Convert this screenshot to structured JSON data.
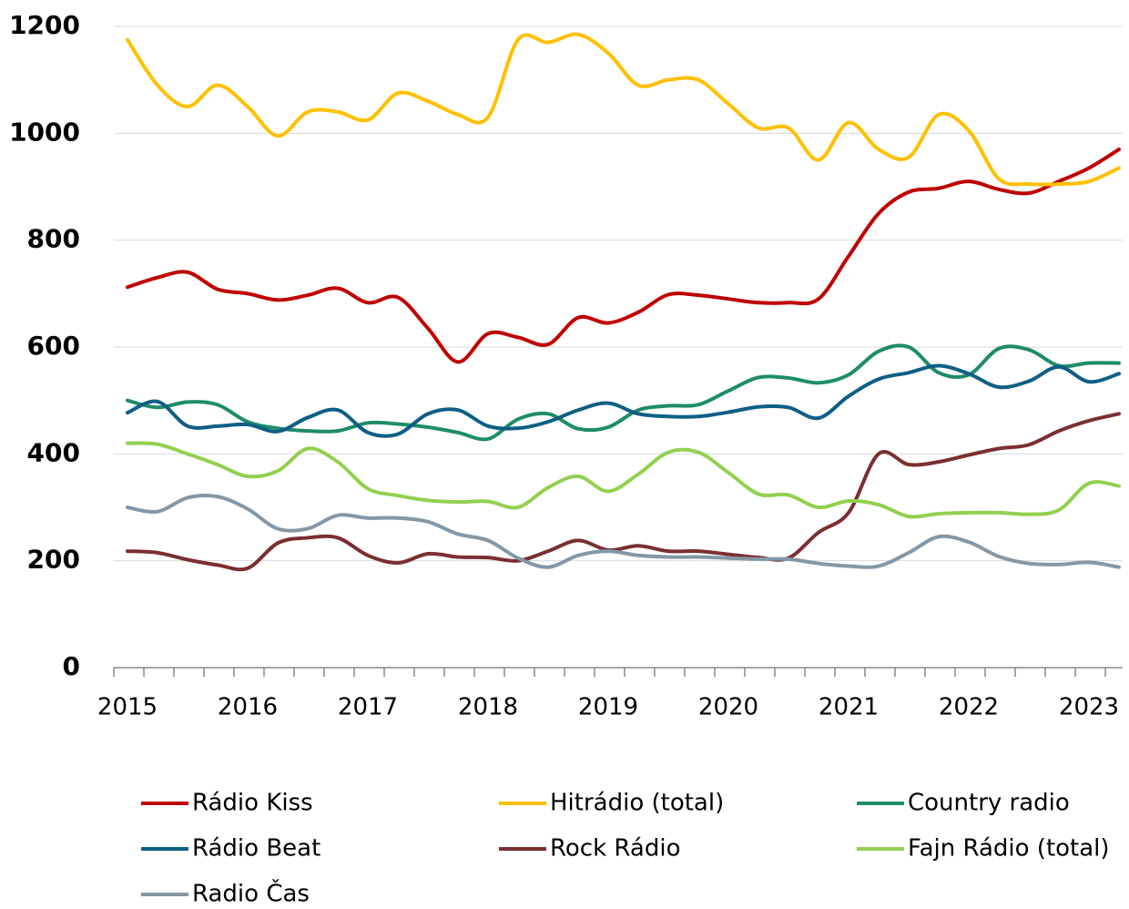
{
  "chart_data": {
    "type": "line",
    "categories": [
      "2015",
      null,
      null,
      null,
      "2016",
      null,
      null,
      null,
      "2017",
      null,
      null,
      null,
      "2018",
      null,
      null,
      null,
      "2019",
      null,
      null,
      null,
      "2020",
      null,
      null,
      null,
      "2021",
      null,
      null,
      null,
      "2022",
      null,
      null,
      null,
      "2023",
      null
    ],
    "series": [
      {
        "name": "Rádio Kiss",
        "color": "#c00000",
        "values": [
          712,
          730,
          740,
          708,
          700,
          688,
          697,
          710,
          683,
          693,
          635,
          572,
          625,
          618,
          605,
          655,
          645,
          665,
          698,
          697,
          690,
          683,
          683,
          690,
          770,
          850,
          890,
          897,
          910,
          895,
          888,
          910,
          935,
          970
        ]
      },
      {
        "name": "Hitrádio (total)",
        "color": "#ffc000",
        "values": [
          1175,
          1090,
          1050,
          1090,
          1050,
          995,
          1040,
          1040,
          1025,
          1075,
          1060,
          1035,
          1030,
          1175,
          1170,
          1185,
          1150,
          1090,
          1100,
          1100,
          1055,
          1010,
          1010,
          950,
          1020,
          970,
          955,
          1035,
          1005,
          915,
          905,
          905,
          910,
          935
        ]
      },
      {
        "name": "Country radio",
        "color": "#1e8c6a",
        "values": [
          500,
          487,
          497,
          492,
          460,
          448,
          443,
          443,
          458,
          456,
          450,
          440,
          428,
          465,
          475,
          447,
          450,
          482,
          490,
          492,
          518,
          543,
          542,
          533,
          548,
          592,
          600,
          552,
          548,
          597,
          595,
          565,
          570,
          570
        ]
      },
      {
        "name": "Rádio Beat",
        "color": "#0e5f84",
        "values": [
          477,
          498,
          452,
          452,
          455,
          442,
          468,
          482,
          440,
          437,
          475,
          482,
          452,
          448,
          460,
          482,
          495,
          475,
          470,
          470,
          478,
          488,
          487,
          467,
          508,
          540,
          552,
          565,
          550,
          525,
          536,
          563,
          535,
          550
        ]
      },
      {
        "name": "Rock Rádio",
        "color": "#7b2f32",
        "values": [
          218,
          215,
          202,
          192,
          186,
          233,
          243,
          243,
          210,
          196,
          213,
          207,
          206,
          200,
          218,
          238,
          220,
          228,
          218,
          218,
          212,
          206,
          205,
          253,
          290,
          400,
          380,
          385,
          398,
          410,
          417,
          443,
          462,
          475
        ]
      },
      {
        "name": "Fajn Rádio (total)",
        "color": "#92d050",
        "values": [
          420,
          418,
          400,
          380,
          358,
          368,
          410,
          385,
          335,
          322,
          313,
          310,
          311,
          300,
          337,
          358,
          330,
          362,
          403,
          403,
          365,
          325,
          323,
          300,
          312,
          305,
          283,
          288,
          290,
          290,
          287,
          295,
          345,
          340
        ]
      },
      {
        "name": "Radio Čas",
        "color": "#8497a6",
        "values": [
          300,
          292,
          318,
          320,
          297,
          260,
          260,
          285,
          280,
          280,
          273,
          250,
          238,
          205,
          188,
          210,
          218,
          210,
          207,
          207,
          205,
          203,
          203,
          195,
          190,
          190,
          215,
          245,
          235,
          208,
          195,
          193,
          197,
          188
        ]
      }
    ],
    "ylim": [
      0,
      1200
    ],
    "yticks": [
      0,
      200,
      400,
      600,
      800,
      1000,
      1200
    ],
    "grid": true
  }
}
